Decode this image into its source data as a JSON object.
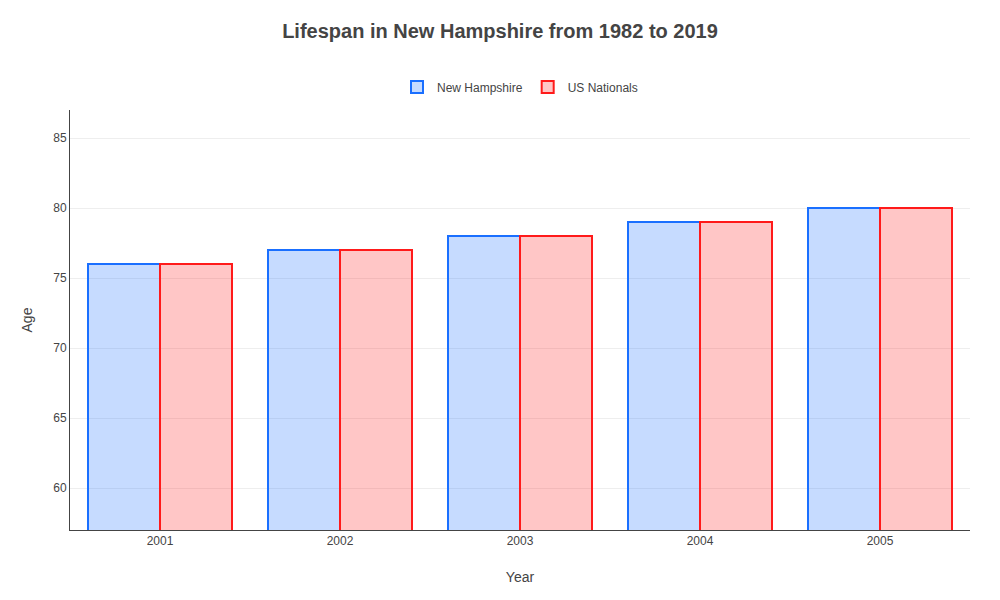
{
  "chart_data": {
    "type": "bar",
    "title": "Lifespan in New Hampshire from 1982 to 2019",
    "xlabel": "Year",
    "ylabel": "Age",
    "categories": [
      "2001",
      "2002",
      "2003",
      "2004",
      "2005"
    ],
    "series": [
      {
        "name": "New Hampshire",
        "color": "#1a6fff",
        "values": [
          76,
          77,
          78,
          79,
          80
        ]
      },
      {
        "name": "US Nationals",
        "color": "#ff1a1a",
        "values": [
          76,
          77,
          78,
          79,
          80
        ]
      }
    ],
    "ylim": [
      57,
      87
    ],
    "yticks": [
      60,
      65,
      70,
      75,
      80,
      85
    ],
    "grid": true,
    "legend": "top"
  }
}
